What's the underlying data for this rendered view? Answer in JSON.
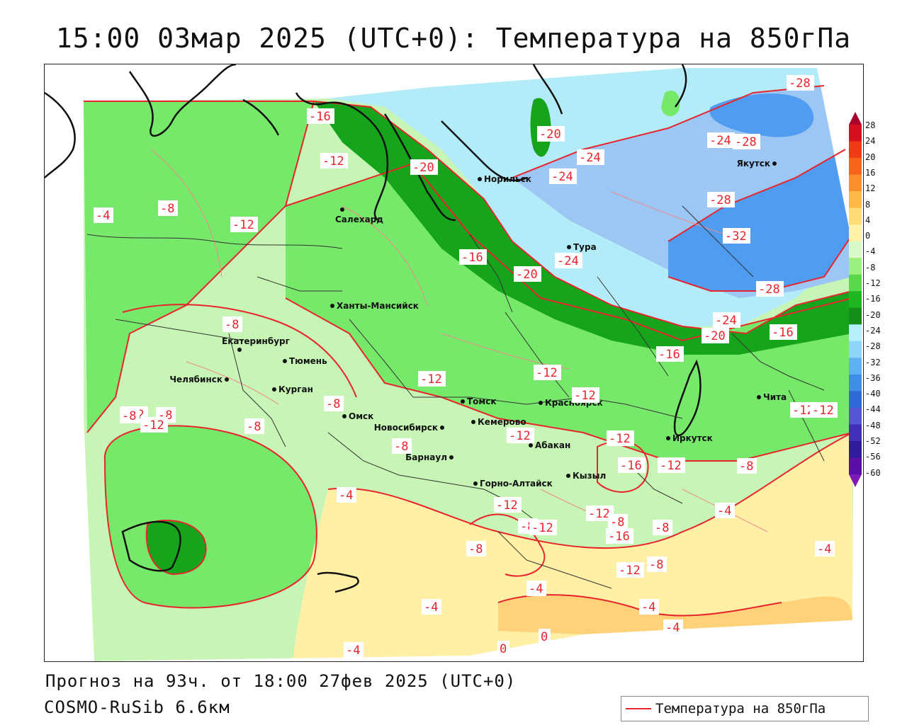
{
  "title": "15:00 03мар 2025 (UTC+0): Температура на 850гПа",
  "forecast_line": "Прогноз на 93ч. от 18:00 27фев 2025 (UTC+0)",
  "model_line": "COSMO-RuSib 6.6км",
  "legend_label": "Температура на 850гПа",
  "colors": {
    "contour": "#e8242c",
    "border": "#111111",
    "light_green": "#c6f5b6",
    "mid_green": "#76e86a",
    "dark_green": "#16a41c",
    "pale_blue": "#b3ecf8",
    "light_blue": "#9cc6f4",
    "mid_blue": "#4f9cf0",
    "yellow": "#fff0a6",
    "orange": "#ffd27a"
  },
  "cities": [
    {
      "name": "Норильск"
    },
    {
      "name": "Салехард"
    },
    {
      "name": "Тура"
    },
    {
      "name": "Якутск"
    },
    {
      "name": "Ханты-Мансийск"
    },
    {
      "name": "Екатеринбург"
    },
    {
      "name": "Тюмень"
    },
    {
      "name": "Челябинск"
    },
    {
      "name": "Курган"
    },
    {
      "name": "Омск"
    },
    {
      "name": "Новосибирск"
    },
    {
      "name": "Томск"
    },
    {
      "name": "Кемерово"
    },
    {
      "name": "Красноярск"
    },
    {
      "name": "Абакан"
    },
    {
      "name": "Барнаул"
    },
    {
      "name": "Горно-Алтайск"
    },
    {
      "name": "Кызыл"
    },
    {
      "name": "Иркутск"
    },
    {
      "name": "Чита"
    }
  ],
  "contour_labels": [
    {
      "text": "-16"
    },
    {
      "text": "-12"
    },
    {
      "text": "-8"
    },
    {
      "text": "-4"
    },
    {
      "text": "-12"
    },
    {
      "text": "-20"
    },
    {
      "text": "-24"
    },
    {
      "text": "-20"
    },
    {
      "text": "-24"
    },
    {
      "text": "-28"
    },
    {
      "text": "-24"
    },
    {
      "text": "-28"
    },
    {
      "text": "-28"
    },
    {
      "text": "-32"
    },
    {
      "text": "-16"
    },
    {
      "text": "-20"
    },
    {
      "text": "-24"
    },
    {
      "text": "-28"
    },
    {
      "text": "-24"
    },
    {
      "text": "-20"
    },
    {
      "text": "-16"
    },
    {
      "text": "-16"
    },
    {
      "text": "-8"
    },
    {
      "text": "-12"
    },
    {
      "text": "-12"
    },
    {
      "text": "-12"
    },
    {
      "text": "-8"
    },
    {
      "text": "-8"
    },
    {
      "text": "-12"
    },
    {
      "text": "-8"
    },
    {
      "text": "-8"
    },
    {
      "text": "-12"
    },
    {
      "text": "-12"
    },
    {
      "text": "-16"
    },
    {
      "text": "-12"
    },
    {
      "text": "-12"
    },
    {
      "text": "-8"
    },
    {
      "text": "-12"
    },
    {
      "text": "-12"
    },
    {
      "text": "-16"
    },
    {
      "text": "-4"
    },
    {
      "text": "-8"
    },
    {
      "text": "-4"
    },
    {
      "text": "-4"
    },
    {
      "text": "-4"
    },
    {
      "text": "-4"
    },
    {
      "text": "-4"
    },
    {
      "text": "0"
    },
    {
      "text": "0"
    },
    {
      "text": "-4"
    },
    {
      "text": "-4"
    },
    {
      "text": "-8"
    },
    {
      "text": "-12"
    },
    {
      "text": "-8"
    },
    {
      "text": "-12"
    },
    {
      "text": "-12"
    },
    {
      "text": "-8"
    },
    {
      "text": "-12"
    },
    {
      "text": "-8"
    },
    {
      "text": "-8"
    }
  ],
  "scale": {
    "labels": [
      "28",
      "24",
      "20",
      "16",
      "12",
      "8",
      "4",
      "0",
      "-4",
      "-8",
      "-12",
      "-16",
      "-20",
      "-24",
      "-28",
      "-32",
      "-36",
      "-40",
      "-44",
      "-48",
      "-52",
      "-56",
      "-60"
    ],
    "colors": [
      "#a8002a",
      "#d40f1e",
      "#ee3b16",
      "#f6641c",
      "#f98f2a",
      "#fbb847",
      "#fddc73",
      "#fff3a8",
      "#d9fac8",
      "#9cf07e",
      "#58d84a",
      "#1fb622",
      "#168e18",
      "#b6f0fb",
      "#8ed6f7",
      "#5fb2f1",
      "#3e8ee8",
      "#2f6ad8",
      "#5456d6",
      "#4230b8",
      "#2f1c9a",
      "#5a10a8",
      "#7f1ab8"
    ]
  }
}
